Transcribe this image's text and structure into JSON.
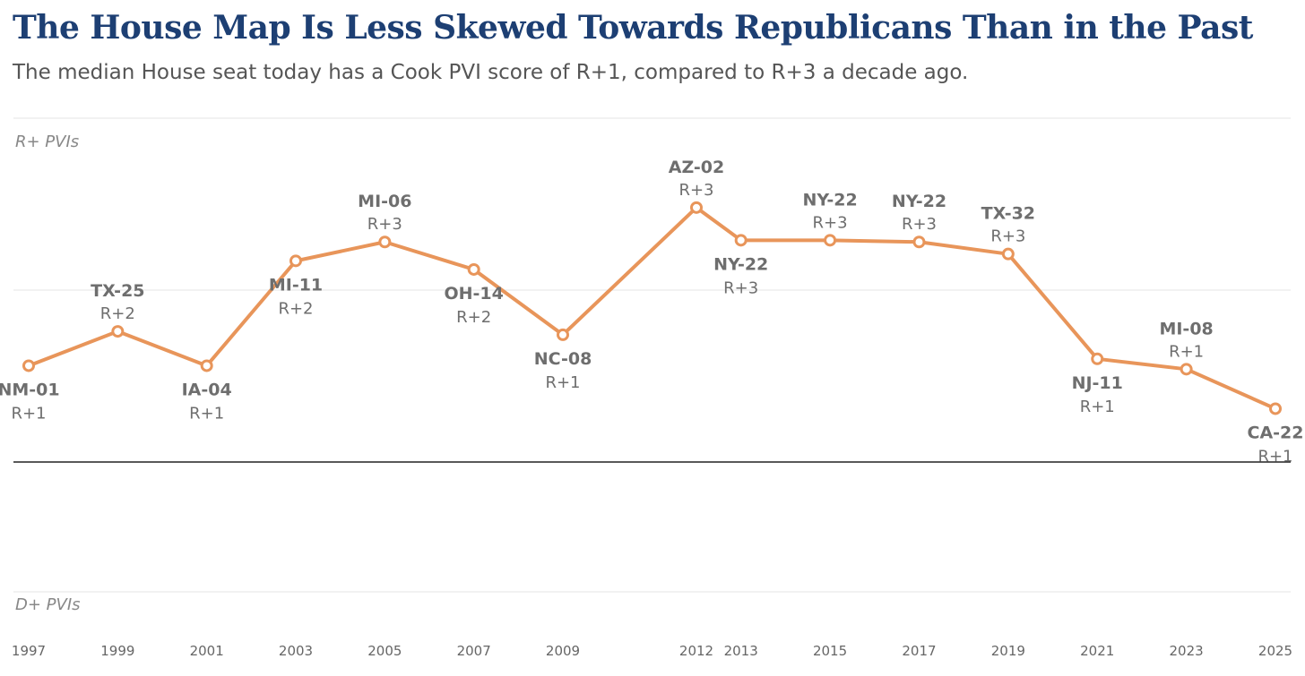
{
  "header": {
    "title": "The House Map Is Less Skewed Towards Republicans Than in the Past",
    "subtitle": "The median House seat today has a Cook PVI score of R+1, compared to R+3 a decade ago."
  },
  "chart_data": {
    "type": "line",
    "zone_labels": {
      "top": "R+ PVIs",
      "bottom": "D+ PVIs"
    },
    "x_ticks": [
      "1997",
      "1999",
      "2001",
      "2003",
      "2005",
      "2007",
      "2009",
      "2012",
      "2013",
      "2015",
      "2017",
      "2019",
      "2021",
      "2023",
      "2025"
    ],
    "series": [
      {
        "color": "#e8955a",
        "points": [
          {
            "x": 1997,
            "y": 0.56,
            "district": "NM-01",
            "pvi": "R+1",
            "label_pos": "below"
          },
          {
            "x": 1999,
            "y": 0.76,
            "district": "TX-25",
            "pvi": "R+2",
            "label_pos": "above"
          },
          {
            "x": 2001,
            "y": 0.56,
            "district": "IA-04",
            "pvi": "R+1",
            "label_pos": "below"
          },
          {
            "x": 2003,
            "y": 1.17,
            "district": "MI-11",
            "pvi": "R+2",
            "label_pos": "below"
          },
          {
            "x": 2005,
            "y": 1.28,
            "district": "MI-06",
            "pvi": "R+3",
            "label_pos": "above"
          },
          {
            "x": 2007,
            "y": 1.12,
            "district": "OH-14",
            "pvi": "R+2",
            "label_pos": "below"
          },
          {
            "x": 2009,
            "y": 0.74,
            "district": "NC-08",
            "pvi": "R+1",
            "label_pos": "below"
          },
          {
            "x": 2012,
            "y": 1.48,
            "district": "AZ-02",
            "pvi": "R+3",
            "label_pos": "above"
          },
          {
            "x": 2013,
            "y": 1.29,
            "district": "NY-22",
            "pvi": "R+3",
            "label_pos": "below"
          },
          {
            "x": 2015,
            "y": 1.29,
            "district": "NY-22",
            "pvi": "R+3",
            "label_pos": "above"
          },
          {
            "x": 2017,
            "y": 1.28,
            "district": "NY-22",
            "pvi": "R+3",
            "label_pos": "above"
          },
          {
            "x": 2019,
            "y": 1.21,
            "district": "TX-32",
            "pvi": "R+3",
            "label_pos": "above"
          },
          {
            "x": 2021,
            "y": 0.6,
            "district": "NJ-11",
            "pvi": "R+1",
            "label_pos": "below"
          },
          {
            "x": 2023,
            "y": 0.54,
            "district": "MI-08",
            "pvi": "R+1",
            "label_pos": "above"
          },
          {
            "x": 2025,
            "y": 0.31,
            "district": "CA-22",
            "pvi": "R+1",
            "label_pos": "below"
          }
        ]
      }
    ],
    "ylim": [
      -1.5,
      2
    ],
    "zero_line": true,
    "grid": true
  }
}
